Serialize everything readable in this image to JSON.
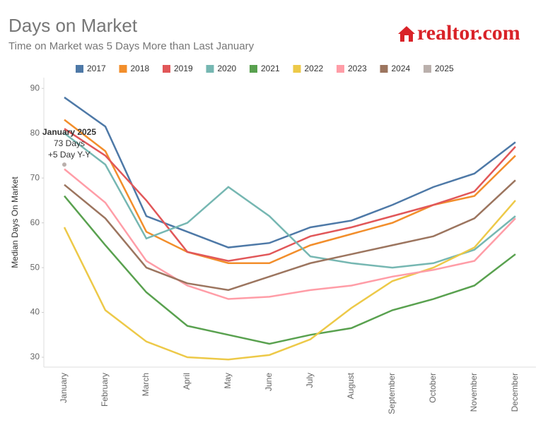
{
  "chart_data": {
    "type": "line",
    "title": "Days on Market",
    "subtitle": "Time on Market was 5 Days More than Last January",
    "logo": "realtor.com",
    "y_label": "Median Days On Market",
    "categories": [
      "January",
      "February",
      "March",
      "April",
      "May",
      "June",
      "July",
      "August",
      "September",
      "October",
      "November",
      "December"
    ],
    "series": [
      {
        "name": "2017",
        "color": "#4e79a7",
        "values": [
          88,
          81.5,
          61.5,
          58,
          54.5,
          55.5,
          59,
          60.5,
          64,
          68,
          71,
          78
        ]
      },
      {
        "name": "2018",
        "color": "#f28e2b",
        "values": [
          83,
          76,
          58,
          53.5,
          51,
          51,
          55,
          57.5,
          60,
          64,
          66,
          75
        ]
      },
      {
        "name": "2019",
        "color": "#e15759",
        "values": [
          81,
          75,
          65,
          53.5,
          51.5,
          53,
          57,
          59,
          61.5,
          64,
          67,
          77
        ]
      },
      {
        "name": "2020",
        "color": "#76b7b2",
        "values": [
          80,
          73,
          56.5,
          60,
          68,
          61.5,
          52.5,
          51,
          50,
          51,
          54,
          61.5
        ]
      },
      {
        "name": "2021",
        "color": "#59a14f",
        "values": [
          66,
          55,
          44.5,
          37,
          35,
          33,
          35,
          36.5,
          40.5,
          43,
          46,
          53
        ]
      },
      {
        "name": "2022",
        "color": "#edc948",
        "values": [
          59,
          40.5,
          33.5,
          30,
          29.5,
          30.5,
          34,
          41,
          47,
          50,
          54.5,
          65
        ]
      },
      {
        "name": "2023",
        "color": "#ff9da7",
        "values": [
          72,
          64.5,
          51.5,
          46,
          43,
          43.5,
          45,
          46,
          48,
          49.5,
          51.5,
          61
        ]
      },
      {
        "name": "2024",
        "color": "#9c755f",
        "values": [
          68.5,
          61,
          50,
          46.5,
          45,
          48,
          51,
          53,
          55,
          57,
          61,
          69.5
        ]
      },
      {
        "name": "2025",
        "color": "#bab0ac",
        "values": [
          73,
          null,
          null,
          null,
          null,
          null,
          null,
          null,
          null,
          null,
          null,
          null
        ]
      }
    ],
    "annotation": [
      "January 2025",
      "73 Days",
      "+5 Day Y-Y"
    ],
    "ylim": [
      27.8,
      92.4
    ],
    "yticks": [
      30,
      40,
      50,
      60,
      70,
      80,
      90
    ],
    "grid": false
  }
}
